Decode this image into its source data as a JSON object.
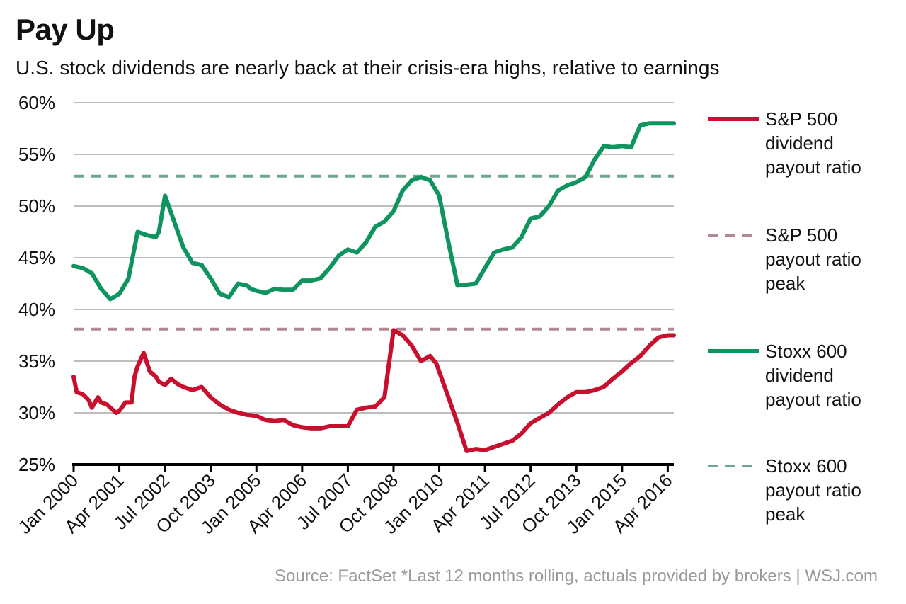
{
  "chart_data": {
    "type": "line",
    "title": "Pay Up",
    "subtitle": "U.S. stock dividends are nearly back at their crisis-era highs, relative to earnings",
    "source": "Source: FactSet  *Last 12 months rolling, actuals provided by brokers  |  WSJ.com",
    "ylim": [
      25,
      60
    ],
    "yticks": [
      25,
      30,
      35,
      40,
      45,
      50,
      55,
      60
    ],
    "ytick_labels": [
      "25%",
      "30%",
      "35%",
      "40%",
      "45%",
      "50%",
      "55%",
      "60%"
    ],
    "xlim": [
      "2000-01",
      "2016-06"
    ],
    "xticks": [
      "2000-01",
      "2001-04",
      "2002-07",
      "2003-10",
      "2005-01",
      "2006-04",
      "2007-07",
      "2008-10",
      "2010-01",
      "2011-04",
      "2012-07",
      "2013-10",
      "2015-01",
      "2016-04"
    ],
    "xtick_labels": [
      "Jan 2000",
      "Apr 2001",
      "Jul 2002",
      "Oct 2003",
      "Jan 2005",
      "Apr 2006",
      "Jul 2007",
      "Oct 2008",
      "Jan 2010",
      "Apr 2011",
      "Jul 2012",
      "Oct 2013",
      "Jan 2015",
      "Apr 2016"
    ],
    "grid": true,
    "legend_position": "right",
    "series": [
      {
        "name": "S&P 500 dividend payout ratio",
        "style": "solid",
        "color": "#c8102e",
        "x": [
          "2000-01",
          "2000-02",
          "2000-04",
          "2000-06",
          "2000-07",
          "2000-09",
          "2000-10",
          "2000-12",
          "2001-01",
          "2001-03",
          "2001-04",
          "2001-06",
          "2001-08",
          "2001-09",
          "2001-10",
          "2001-12",
          "2002-02",
          "2002-04",
          "2002-05",
          "2002-07",
          "2002-09",
          "2002-11",
          "2003-01",
          "2003-04",
          "2003-07",
          "2003-10",
          "2004-01",
          "2004-04",
          "2004-07",
          "2004-10",
          "2005-01",
          "2005-04",
          "2005-07",
          "2005-10",
          "2006-01",
          "2006-04",
          "2006-07",
          "2006-10",
          "2007-01",
          "2007-04",
          "2007-07",
          "2007-10",
          "2008-01",
          "2008-04",
          "2008-07",
          "2008-10",
          "2009-01",
          "2009-04",
          "2009-07",
          "2009-10",
          "2009-12",
          "2010-01",
          "2010-04",
          "2010-07",
          "2010-10",
          "2011-01",
          "2011-04",
          "2011-07",
          "2011-10",
          "2012-01",
          "2012-04",
          "2012-07",
          "2012-10",
          "2013-01",
          "2013-04",
          "2013-07",
          "2013-10",
          "2014-01",
          "2014-04",
          "2014-07",
          "2014-10",
          "2015-01",
          "2015-04",
          "2015-07",
          "2015-10",
          "2016-01",
          "2016-04",
          "2016-06"
        ],
        "values": [
          33.5,
          32.0,
          31.8,
          31.2,
          30.5,
          31.5,
          31.0,
          30.8,
          30.5,
          30.0,
          30.2,
          31.0,
          31.0,
          33.5,
          34.5,
          35.8,
          34.0,
          33.5,
          33.0,
          32.7,
          33.3,
          32.8,
          32.5,
          32.2,
          32.5,
          31.5,
          30.8,
          30.3,
          30.0,
          29.8,
          29.7,
          29.3,
          29.2,
          29.3,
          28.8,
          28.6,
          28.5,
          28.5,
          28.7,
          28.7,
          28.7,
          30.3,
          30.5,
          30.6,
          31.5,
          38.0,
          37.5,
          36.5,
          35.0,
          35.5,
          34.8,
          34.0,
          31.5,
          29.0,
          26.3,
          26.5,
          26.4,
          26.7,
          27.0,
          27.3,
          28.0,
          29.0,
          29.5,
          30.0,
          30.8,
          31.5,
          32.0,
          32.0,
          32.2,
          32.5,
          33.3,
          34.0,
          34.8,
          35.5,
          36.5,
          37.3,
          37.5,
          37.5
        ]
      },
      {
        "name": "S&P 500 payout ratio peak",
        "style": "dashed",
        "color": "#b08a8e",
        "x": [
          "2000-01",
          "2016-06"
        ],
        "values": [
          38.1,
          38.1
        ]
      },
      {
        "name": "Stoxx 600 dividend payout ratio",
        "style": "solid",
        "color": "#0f9460",
        "x": [
          "2000-01",
          "2000-04",
          "2000-07",
          "2000-10",
          "2001-01",
          "2001-04",
          "2001-07",
          "2001-10",
          "2002-01",
          "2002-04",
          "2002-05",
          "2002-07",
          "2002-10",
          "2003-01",
          "2003-04",
          "2003-07",
          "2003-10",
          "2004-01",
          "2004-04",
          "2004-07",
          "2004-10",
          "2004-11",
          "2005-01",
          "2005-04",
          "2005-07",
          "2005-10",
          "2006-01",
          "2006-04",
          "2006-07",
          "2006-10",
          "2007-01",
          "2007-04",
          "2007-07",
          "2007-10",
          "2008-01",
          "2008-04",
          "2008-07",
          "2008-10",
          "2009-01",
          "2009-04",
          "2009-07",
          "2009-10",
          "2010-01",
          "2010-04",
          "2010-07",
          "2010-10",
          "2011-01",
          "2011-04",
          "2011-07",
          "2011-10",
          "2012-01",
          "2012-04",
          "2012-07",
          "2012-10",
          "2013-01",
          "2013-04",
          "2013-07",
          "2013-10",
          "2014-01",
          "2014-04",
          "2014-07",
          "2014-10",
          "2015-01",
          "2015-04",
          "2015-07",
          "2015-10",
          "2016-01",
          "2016-04",
          "2016-06"
        ],
        "values": [
          44.2,
          44.0,
          43.5,
          42.0,
          41.0,
          41.5,
          43.0,
          47.5,
          47.2,
          47.0,
          47.5,
          51.0,
          48.5,
          46.0,
          44.5,
          44.3,
          43.0,
          41.5,
          41.2,
          42.5,
          42.3,
          42.0,
          41.8,
          41.6,
          42.0,
          41.9,
          41.9,
          42.8,
          42.8,
          43.0,
          44.0,
          45.2,
          45.8,
          45.5,
          46.5,
          48.0,
          48.5,
          49.5,
          51.5,
          52.5,
          52.8,
          52.5,
          51.0,
          46.5,
          42.3,
          42.4,
          42.5,
          44.0,
          45.5,
          45.8,
          46.0,
          47.0,
          48.8,
          49.0,
          50.0,
          51.5,
          52.0,
          52.3,
          52.8,
          54.5,
          55.8,
          55.7,
          55.8,
          55.7,
          57.8,
          58.0,
          58.0,
          58.0,
          58.0
        ]
      },
      {
        "name": "Stoxx 600 payout ratio peak",
        "style": "dashed",
        "color": "#6fa68c",
        "x": [
          "2000-01",
          "2016-06"
        ],
        "values": [
          52.9,
          52.9
        ]
      }
    ]
  }
}
